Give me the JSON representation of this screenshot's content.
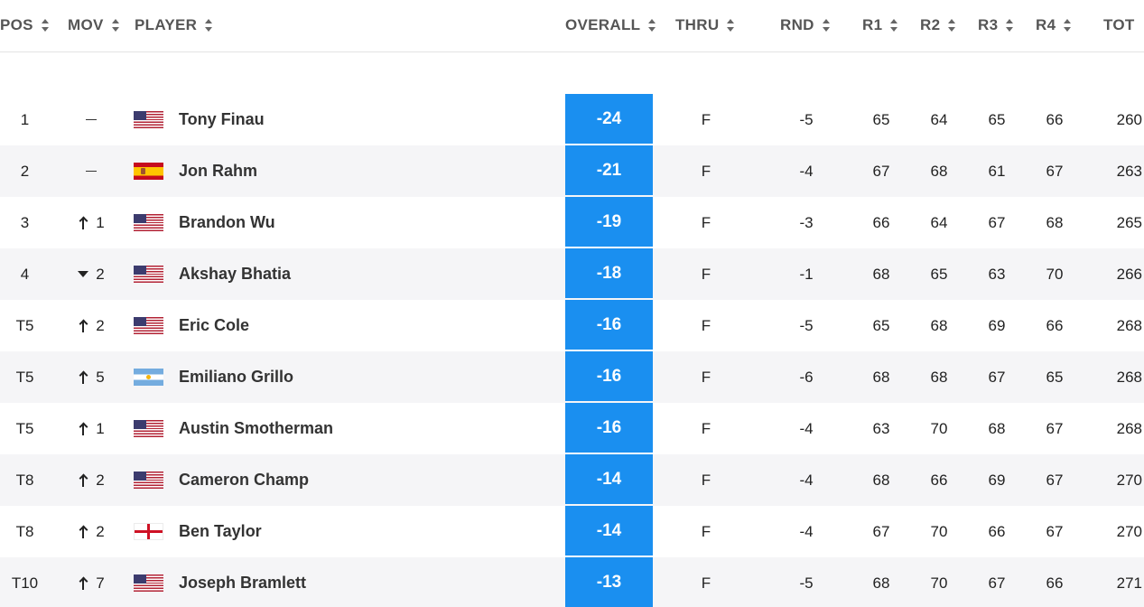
{
  "header": {
    "columns": [
      {
        "key": "pos",
        "label": "POS"
      },
      {
        "key": "mov",
        "label": "MOV"
      },
      {
        "key": "player",
        "label": "PLAYER"
      },
      {
        "key": "overall",
        "label": "OVERALL"
      },
      {
        "key": "thru",
        "label": "THRU"
      },
      {
        "key": "rnd",
        "label": "RND"
      },
      {
        "key": "r1",
        "label": "R1"
      },
      {
        "key": "r2",
        "label": "R2"
      },
      {
        "key": "r3",
        "label": "R3"
      },
      {
        "key": "r4",
        "label": "R4"
      },
      {
        "key": "tot",
        "label": "TOT"
      }
    ]
  },
  "colors": {
    "score_box": "#1a8ff0",
    "alt_row": "#f5f5f7"
  },
  "rows": [
    {
      "pos": "1",
      "mov_type": "none",
      "mov": "",
      "flag": "us",
      "flag_icon": "usa-flag-icon",
      "player": "Tony Finau",
      "overall": "-24",
      "thru": "F",
      "rnd": "-5",
      "r1": "65",
      "r2": "64",
      "r3": "65",
      "r4": "66",
      "tot": "260"
    },
    {
      "pos": "2",
      "mov_type": "none",
      "mov": "",
      "flag": "es",
      "flag_icon": "spain-flag-icon",
      "player": "Jon Rahm",
      "overall": "-21",
      "thru": "F",
      "rnd": "-4",
      "r1": "67",
      "r2": "68",
      "r3": "61",
      "r4": "67",
      "tot": "263"
    },
    {
      "pos": "3",
      "mov_type": "up",
      "mov": "1",
      "flag": "us",
      "flag_icon": "usa-flag-icon",
      "player": "Brandon Wu",
      "overall": "-19",
      "thru": "F",
      "rnd": "-3",
      "r1": "66",
      "r2": "64",
      "r3": "67",
      "r4": "68",
      "tot": "265"
    },
    {
      "pos": "4",
      "mov_type": "down",
      "mov": "2",
      "flag": "us",
      "flag_icon": "usa-flag-icon",
      "player": "Akshay Bhatia",
      "overall": "-18",
      "thru": "F",
      "rnd": "-1",
      "r1": "68",
      "r2": "65",
      "r3": "63",
      "r4": "70",
      "tot": "266"
    },
    {
      "pos": "T5",
      "mov_type": "up",
      "mov": "2",
      "flag": "us",
      "flag_icon": "usa-flag-icon",
      "player": "Eric Cole",
      "overall": "-16",
      "thru": "F",
      "rnd": "-5",
      "r1": "65",
      "r2": "68",
      "r3": "69",
      "r4": "66",
      "tot": "268"
    },
    {
      "pos": "T5",
      "mov_type": "up",
      "mov": "5",
      "flag": "ar",
      "flag_icon": "argentina-flag-icon",
      "player": "Emiliano Grillo",
      "overall": "-16",
      "thru": "F",
      "rnd": "-6",
      "r1": "68",
      "r2": "68",
      "r3": "67",
      "r4": "65",
      "tot": "268"
    },
    {
      "pos": "T5",
      "mov_type": "up",
      "mov": "1",
      "flag": "us",
      "flag_icon": "usa-flag-icon",
      "player": "Austin Smotherman",
      "overall": "-16",
      "thru": "F",
      "rnd": "-4",
      "r1": "63",
      "r2": "70",
      "r3": "68",
      "r4": "67",
      "tot": "268"
    },
    {
      "pos": "T8",
      "mov_type": "up",
      "mov": "2",
      "flag": "us",
      "flag_icon": "usa-flag-icon",
      "player": "Cameron Champ",
      "overall": "-14",
      "thru": "F",
      "rnd": "-4",
      "r1": "68",
      "r2": "66",
      "r3": "69",
      "r4": "67",
      "tot": "270"
    },
    {
      "pos": "T8",
      "mov_type": "up",
      "mov": "2",
      "flag": "en",
      "flag_icon": "england-flag-icon",
      "player": "Ben Taylor",
      "overall": "-14",
      "thru": "F",
      "rnd": "-4",
      "r1": "67",
      "r2": "70",
      "r3": "66",
      "r4": "67",
      "tot": "270"
    },
    {
      "pos": "T10",
      "mov_type": "up",
      "mov": "7",
      "flag": "us",
      "flag_icon": "usa-flag-icon",
      "player": "Joseph Bramlett",
      "overall": "-13",
      "thru": "F",
      "rnd": "-5",
      "r1": "68",
      "r2": "70",
      "r3": "67",
      "r4": "66",
      "tot": "271"
    }
  ]
}
